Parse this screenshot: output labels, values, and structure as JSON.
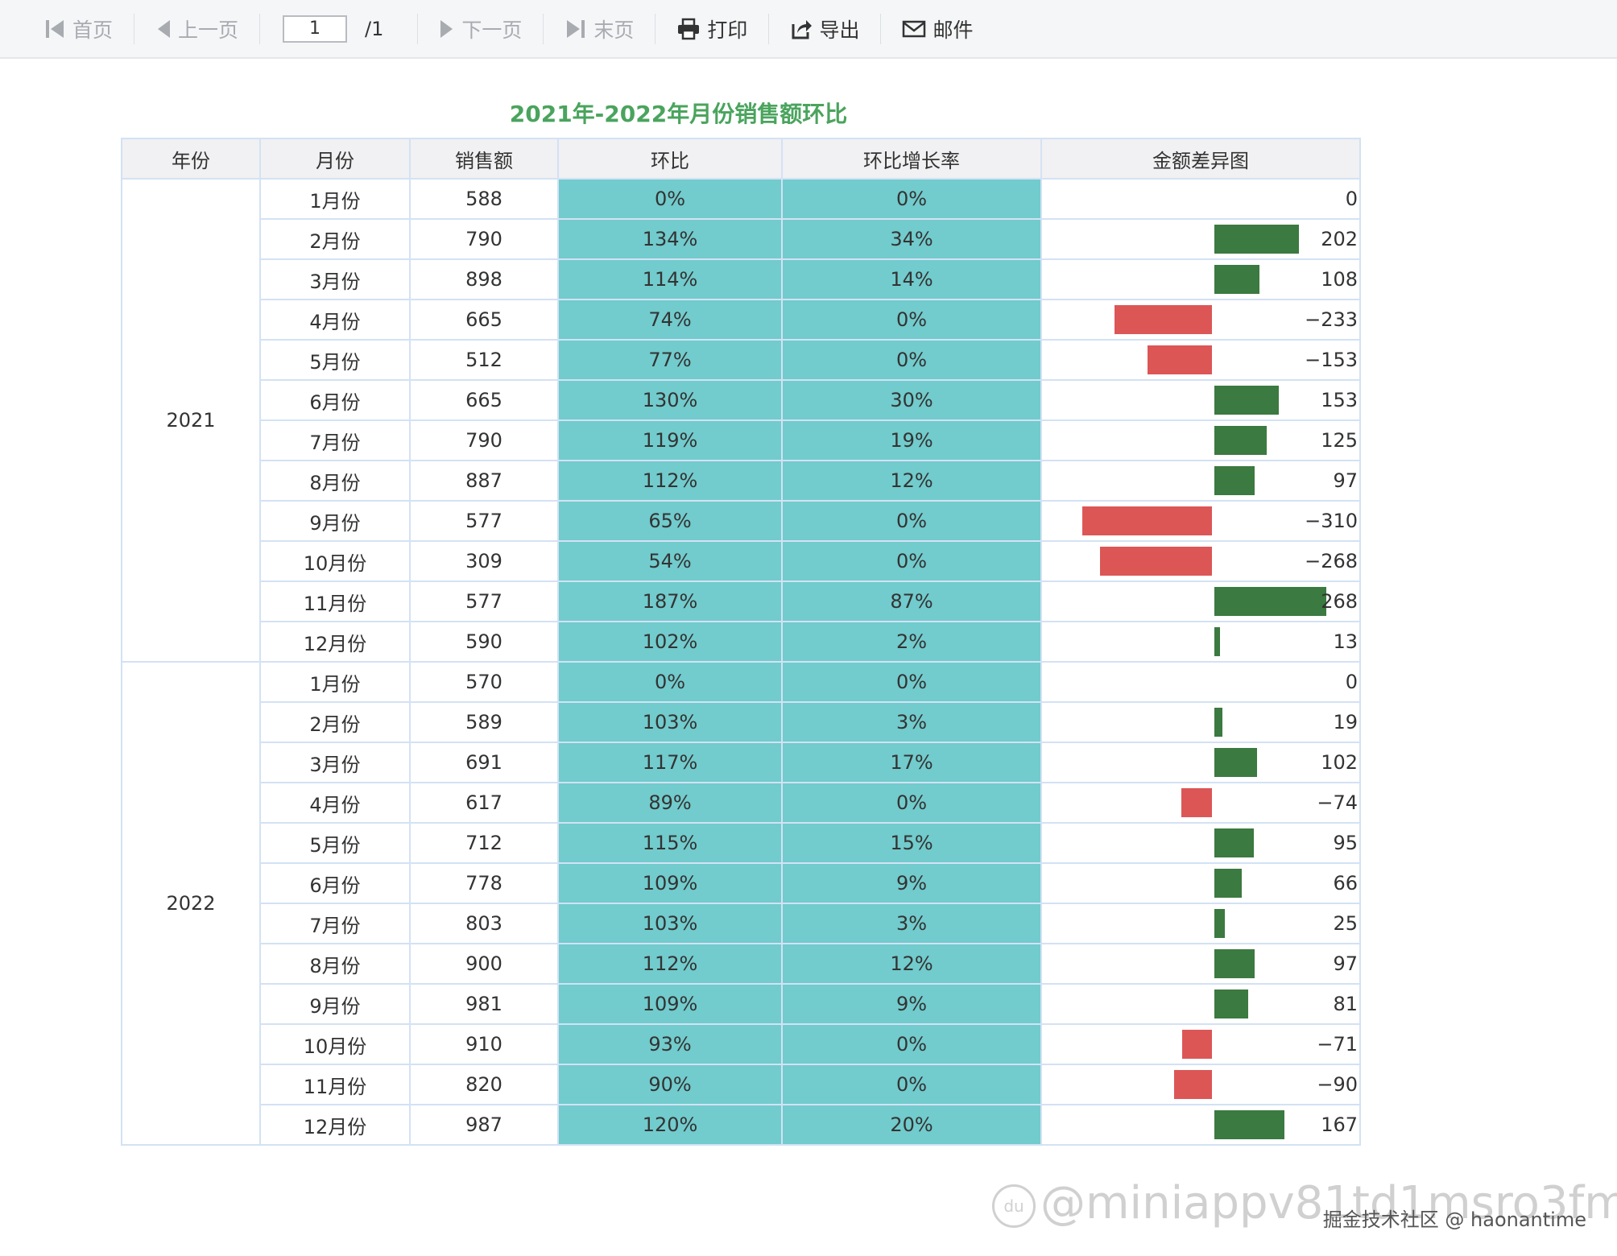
{
  "toolbar": {
    "first_label": "首页",
    "prev_label": "上一页",
    "page_value": "1",
    "page_total": "/1",
    "next_label": "下一页",
    "last_label": "末页",
    "print_label": "打印",
    "export_label": "导出",
    "mail_label": "邮件"
  },
  "report": {
    "title": "2021年-2022年月份销售额环比",
    "headers": [
      "年份",
      "月份",
      "销售额",
      "环比",
      "环比增长率",
      "金额差异图"
    ],
    "groups": [
      {
        "year": "2021",
        "rows": [
          {
            "month": "1月份",
            "sales": "588",
            "ratio": "0%",
            "growth": "0%",
            "diff": 0
          },
          {
            "month": "2月份",
            "sales": "790",
            "ratio": "134%",
            "growth": "34%",
            "diff": 202
          },
          {
            "month": "3月份",
            "sales": "898",
            "ratio": "114%",
            "growth": "14%",
            "diff": 108
          },
          {
            "month": "4月份",
            "sales": "665",
            "ratio": "74%",
            "growth": "0%",
            "diff": -233
          },
          {
            "month": "5月份",
            "sales": "512",
            "ratio": "77%",
            "growth": "0%",
            "diff": -153
          },
          {
            "month": "6月份",
            "sales": "665",
            "ratio": "130%",
            "growth": "30%",
            "diff": 153
          },
          {
            "month": "7月份",
            "sales": "790",
            "ratio": "119%",
            "growth": "19%",
            "diff": 125
          },
          {
            "month": "8月份",
            "sales": "887",
            "ratio": "112%",
            "growth": "12%",
            "diff": 97
          },
          {
            "month": "9月份",
            "sales": "577",
            "ratio": "65%",
            "growth": "0%",
            "diff": -310
          },
          {
            "month": "10月份",
            "sales": "309",
            "ratio": "54%",
            "growth": "0%",
            "diff": -268
          },
          {
            "month": "11月份",
            "sales": "577",
            "ratio": "187%",
            "growth": "87%",
            "diff": 268
          },
          {
            "month": "12月份",
            "sales": "590",
            "ratio": "102%",
            "growth": "2%",
            "diff": 13
          }
        ]
      },
      {
        "year": "2022",
        "rows": [
          {
            "month": "1月份",
            "sales": "570",
            "ratio": "0%",
            "growth": "0%",
            "diff": 0
          },
          {
            "month": "2月份",
            "sales": "589",
            "ratio": "103%",
            "growth": "3%",
            "diff": 19
          },
          {
            "month": "3月份",
            "sales": "691",
            "ratio": "117%",
            "growth": "17%",
            "diff": 102
          },
          {
            "month": "4月份",
            "sales": "617",
            "ratio": "89%",
            "growth": "0%",
            "diff": -74
          },
          {
            "month": "5月份",
            "sales": "712",
            "ratio": "115%",
            "growth": "15%",
            "diff": 95
          },
          {
            "month": "6月份",
            "sales": "778",
            "ratio": "109%",
            "growth": "9%",
            "diff": 66
          },
          {
            "month": "7月份",
            "sales": "803",
            "ratio": "103%",
            "growth": "3%",
            "diff": 25
          },
          {
            "month": "8月份",
            "sales": "900",
            "ratio": "112%",
            "growth": "12%",
            "diff": 97
          },
          {
            "month": "9月份",
            "sales": "981",
            "ratio": "109%",
            "growth": "9%",
            "diff": 81
          },
          {
            "month": "10月份",
            "sales": "910",
            "ratio": "93%",
            "growth": "0%",
            "diff": -71
          },
          {
            "month": "11月份",
            "sales": "820",
            "ratio": "90%",
            "growth": "0%",
            "diff": -90
          },
          {
            "month": "12月份",
            "sales": "987",
            "ratio": "120%",
            "growth": "20%",
            "diff": 167
          }
        ]
      }
    ]
  },
  "colors": {
    "title": "#4aa45d",
    "teal_cell": "#72cbcc",
    "bar_positive": "#3b7a40",
    "bar_negative": "#dc5656",
    "header_bg": "#f1f0f2"
  },
  "watermark": {
    "logo": "du",
    "text": "@miniappv81td1msro3fm",
    "source": "掘金技术社区 @ haonantime"
  }
}
